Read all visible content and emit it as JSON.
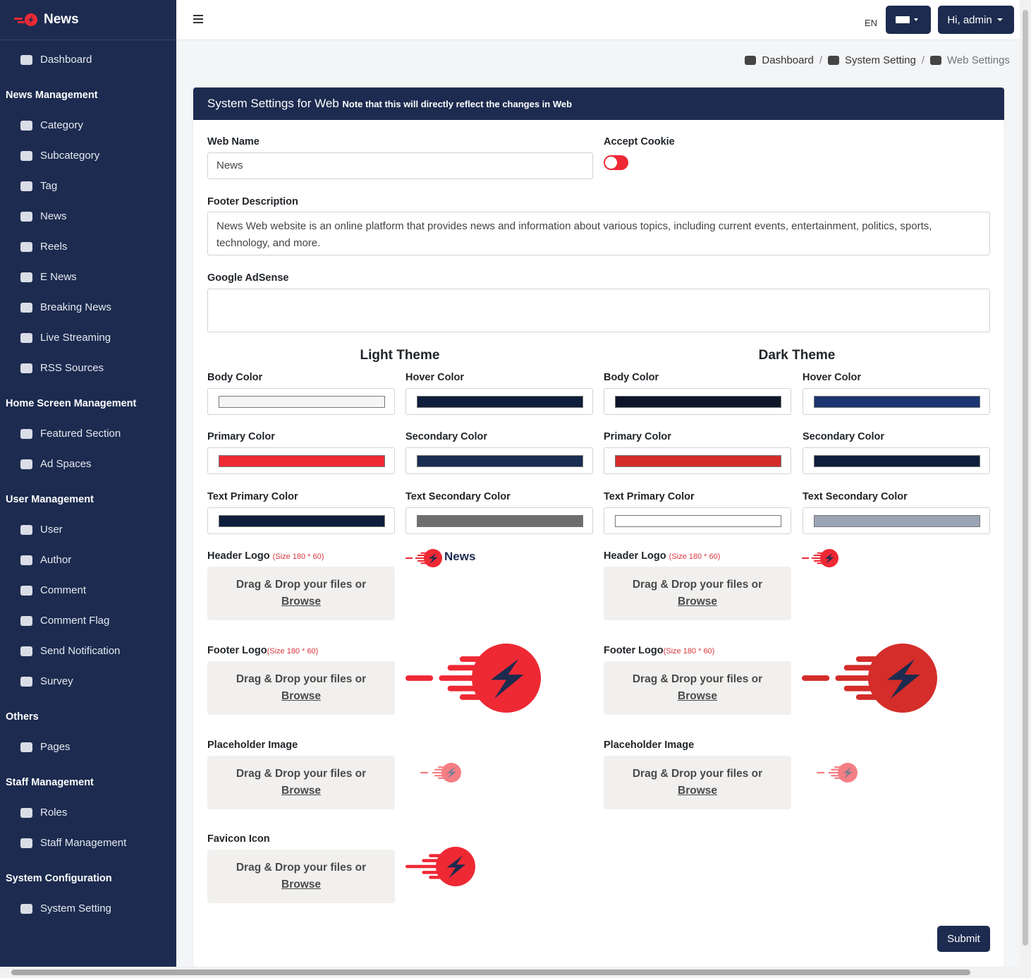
{
  "sidebar": {
    "brand": "News",
    "menu": [
      {
        "label": "Dashboard"
      },
      {
        "heading": "News Management"
      },
      {
        "label": "Category"
      },
      {
        "label": "Subcategory"
      },
      {
        "label": "Tag"
      },
      {
        "label": "News"
      },
      {
        "label": "Reels"
      },
      {
        "label": "E News"
      },
      {
        "label": "Breaking News"
      },
      {
        "label": "Live Streaming"
      },
      {
        "label": "RSS Sources"
      },
      {
        "heading": "Home Screen Management"
      },
      {
        "label": "Featured Section"
      },
      {
        "label": "Ad Spaces"
      },
      {
        "heading": "User Management"
      },
      {
        "label": "User"
      },
      {
        "label": "Author"
      },
      {
        "label": "Comment"
      },
      {
        "label": "Comment Flag"
      },
      {
        "label": "Send Notification"
      },
      {
        "label": "Survey"
      },
      {
        "heading": "Others"
      },
      {
        "label": "Pages"
      },
      {
        "heading": "Staff Management"
      },
      {
        "label": "Roles"
      },
      {
        "label": "Staff Management"
      },
      {
        "heading": "System Configuration"
      },
      {
        "label": "System Setting"
      }
    ]
  },
  "topbar": {
    "language": "EN",
    "user": "Hi, admin"
  },
  "breadcrumb": [
    "Dashboard",
    "System Setting",
    "Web Settings"
  ],
  "card": {
    "title": "System Settings for Web",
    "note": "Note that this will directly reflect the changes in Web"
  },
  "form": {
    "web_name": {
      "label": "Web Name",
      "value": "News"
    },
    "accept_cookie": {
      "label": "Accept Cookie"
    },
    "footer_description": {
      "label": "Footer Description",
      "value": "News Web website is an online platform that provides news and information about various topics, including current events, entertainment, politics, sports, technology, and more."
    },
    "google_adsense": {
      "label": "Google AdSense"
    }
  },
  "themes": [
    {
      "title": "Light Theme",
      "colors": [
        {
          "label": "Body Color",
          "color": "#f5f5f5"
        },
        {
          "label": "Hover Color",
          "color": "#0f1e3c"
        },
        {
          "label": "Primary Color",
          "color": "#ee2934"
        },
        {
          "label": "Secondary Color",
          "color": "#1b2d51"
        },
        {
          "label": "Text Primary Color",
          "color": "#0f1e3c"
        },
        {
          "label": "Text Secondary Color",
          "color": "#6d6e70"
        }
      ]
    },
    {
      "title": "Dark Theme",
      "colors": [
        {
          "label": "Body Color",
          "color": "#0d1628"
        },
        {
          "label": "Hover Color",
          "color": "#1c3470"
        },
        {
          "label": "Primary Color",
          "color": "#d42d2a"
        },
        {
          "label": "Secondary Color",
          "color": "#0f1e3c"
        },
        {
          "label": "Text Primary Color",
          "color": "#ffffff"
        },
        {
          "label": "Text Secondary Color",
          "color": "#9aa4b5"
        }
      ]
    }
  ],
  "dropzone": {
    "text": "Drag & Drop your files or",
    "link": "Browse"
  },
  "light_uploads": [
    {
      "label": "Header Logo",
      "note": "(Size 180 * 60)",
      "logo_text": "News"
    },
    {
      "label": "Footer Logo",
      "note": "(Size 180 * 60)"
    },
    {
      "label": "Placeholder Image"
    },
    {
      "label": "Favicon Icon"
    }
  ],
  "dark_uploads": [
    {
      "label": "Header Logo",
      "note": "(Size 180 * 60)"
    },
    {
      "label": "Footer Logo",
      "note": "(Size 180 * 60)"
    },
    {
      "label": "Placeholder Image"
    }
  ],
  "submit": "Submit"
}
